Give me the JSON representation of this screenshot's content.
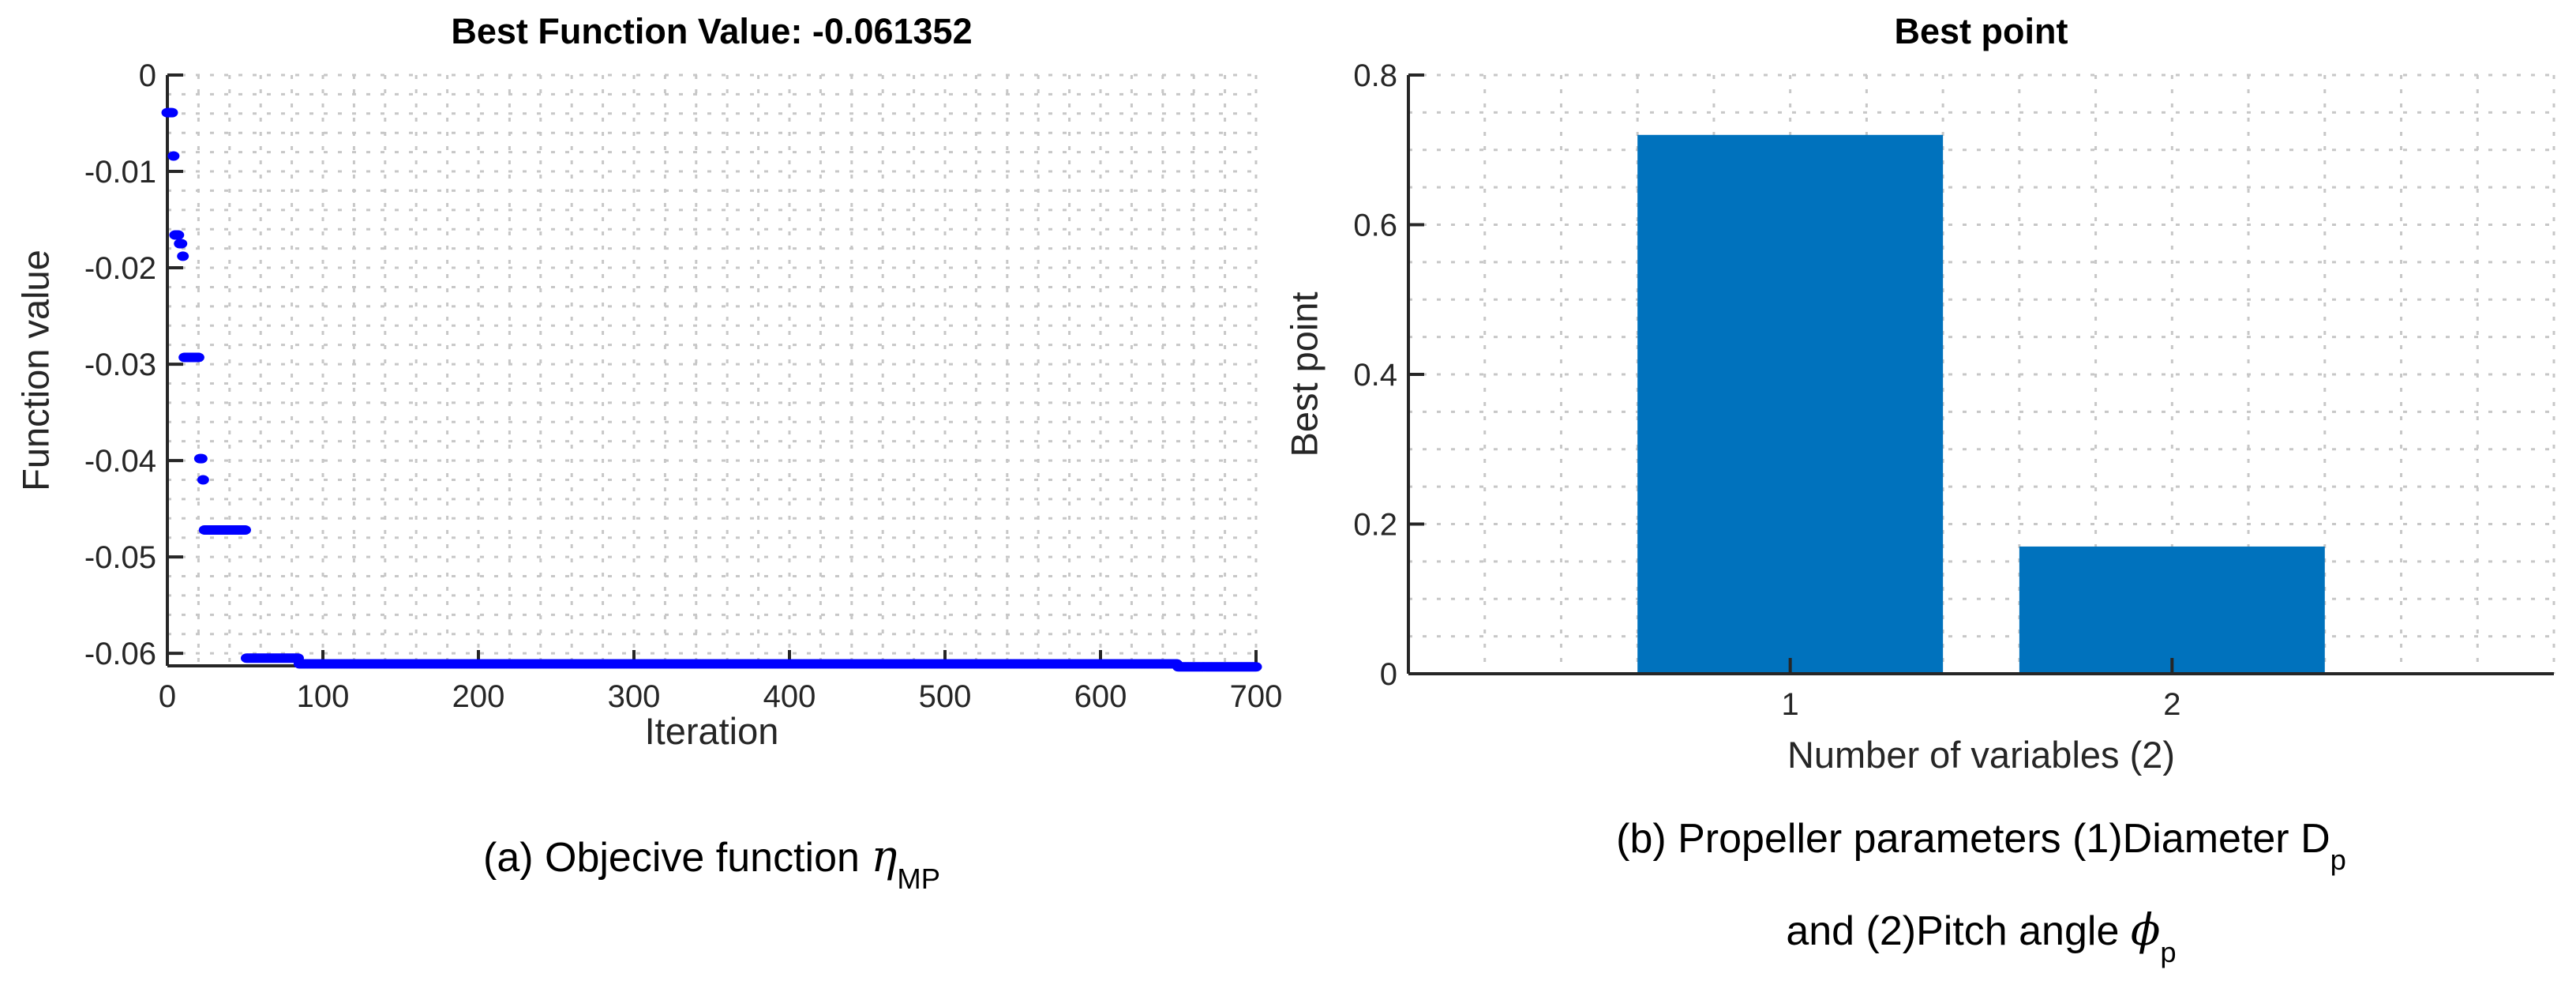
{
  "figure": {
    "captions": {
      "a": {
        "prefix": "(a) Objecive function ",
        "symbol": "η",
        "subscript": "MP"
      },
      "b": {
        "line1_prefix": "(b) Propeller parameters (1)Diameter D",
        "line1_subscript": "p",
        "line2_prefix": "and (2)Pitch angle ",
        "line2_symbol": "ϕ",
        "line2_subscript": "p"
      }
    },
    "colors": {
      "scatter_marker": "#0000FF",
      "bar_fill": "#0072BD",
      "axis": "#262626",
      "grid": "#c7c7c7",
      "tick_text": "#262626",
      "title_text": "#000000"
    }
  },
  "chart_data": [
    {
      "type": "scatter",
      "title": "Best Function Value: -0.061352",
      "xlabel": "Iteration",
      "ylabel": "Function value",
      "xlim": [
        0,
        700
      ],
      "ylim": [
        -0.0613,
        0
      ],
      "xticks": [
        "0",
        "100",
        "200",
        "300",
        "400",
        "500",
        "600",
        "700"
      ],
      "xtick_values": [
        0,
        100,
        200,
        300,
        400,
        500,
        600,
        700
      ],
      "yticks": [
        "0",
        "-0.01",
        "-0.02",
        "-0.03",
        "-0.04",
        "-0.05",
        "-0.06"
      ],
      "ytick_values": [
        0,
        -0.01,
        -0.02,
        -0.03,
        -0.04,
        -0.05,
        -0.06
      ],
      "grid": {
        "minor": true,
        "x_step": 20,
        "y_step": 0.002,
        "style": "dotted"
      },
      "best_function_value": -0.061352,
      "series_segments_iter_from_to_value": [
        [
          0,
          3,
          -0.0039
        ],
        [
          4,
          4,
          -0.0084
        ],
        [
          5,
          7,
          -0.0166
        ],
        [
          8,
          9,
          -0.0175
        ],
        [
          10,
          10,
          -0.0188
        ],
        [
          11,
          20,
          -0.0293
        ],
        [
          21,
          22,
          -0.0398
        ],
        [
          23,
          23,
          -0.042
        ],
        [
          24,
          50,
          -0.0472
        ],
        [
          51,
          84,
          -0.0605
        ],
        [
          85,
          649,
          -0.0611
        ],
        [
          650,
          700,
          -0.0614
        ]
      ]
    },
    {
      "type": "bar",
      "title": "Best point",
      "xlabel": "Number of variables (2)",
      "ylabel": "Best point",
      "categories": [
        "1",
        "2"
      ],
      "category_positions": [
        1,
        2
      ],
      "values": [
        0.72,
        0.17
      ],
      "bar_width": 0.8,
      "xlim": [
        0,
        3
      ],
      "ylim": [
        0,
        0.8
      ],
      "yticks": [
        "0",
        "0.2",
        "0.4",
        "0.6",
        "0.8"
      ],
      "ytick_values": [
        0,
        0.2,
        0.4,
        0.6,
        0.8
      ],
      "grid": {
        "minor": true,
        "x_step": 0.2,
        "y_step": 0.05,
        "style": "dotted"
      }
    }
  ]
}
